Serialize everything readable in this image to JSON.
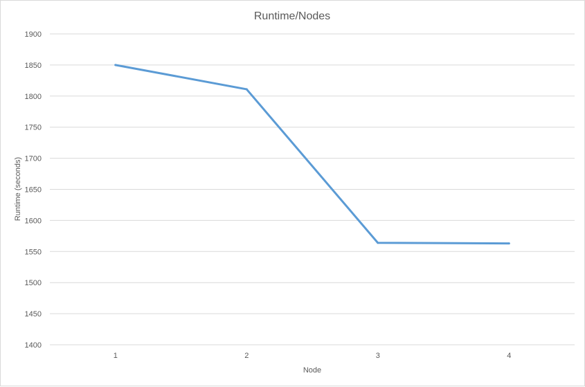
{
  "chart_data": {
    "type": "line",
    "title": "Runtime/Nodes",
    "xlabel": "Node",
    "ylabel": "Runtime (seconds)",
    "categories": [
      "1",
      "2",
      "3",
      "4"
    ],
    "series": [
      {
        "values": [
          1850,
          1811,
          1564,
          1563
        ],
        "color": "#5b9bd5"
      }
    ],
    "ylim": [
      1400,
      1900
    ],
    "yticks": [
      1900,
      1850,
      1800,
      1750,
      1700,
      1650,
      1600,
      1550,
      1500,
      1450,
      1400
    ],
    "grid": true,
    "legend": "none"
  }
}
